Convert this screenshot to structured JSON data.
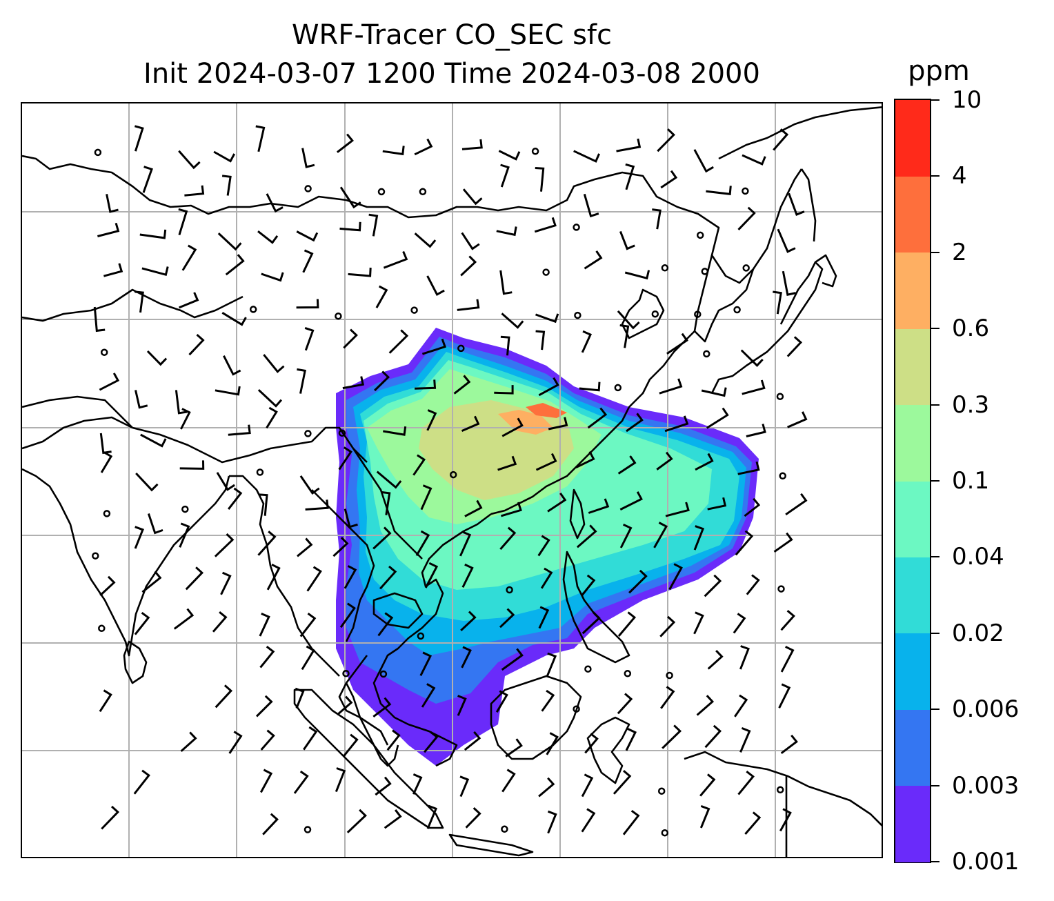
{
  "title": {
    "line1": "WRF-Tracer CO_SEC sfc",
    "line2": "Init 2024-03-07 1200 Time 2024-03-08 2000"
  },
  "colorbar": {
    "unit": "ppm",
    "levels": [
      "0.001",
      "0.003",
      "0.006",
      "0.02",
      "0.04",
      "0.1",
      "0.3",
      "0.6",
      "2",
      "4",
      "10"
    ],
    "colors": [
      "#6a2bfa",
      "#3476f2",
      "#08b2ec",
      "#31dcd7",
      "#6cf8c2",
      "#9cf99c",
      "#cddf86",
      "#feaf62",
      "#fe6f3c",
      "#ff2a1a"
    ]
  },
  "map": {
    "gridlines": true,
    "grid_color": "#b0b0b0",
    "coastline_color": "#000000",
    "barb_color": "#000000"
  }
}
